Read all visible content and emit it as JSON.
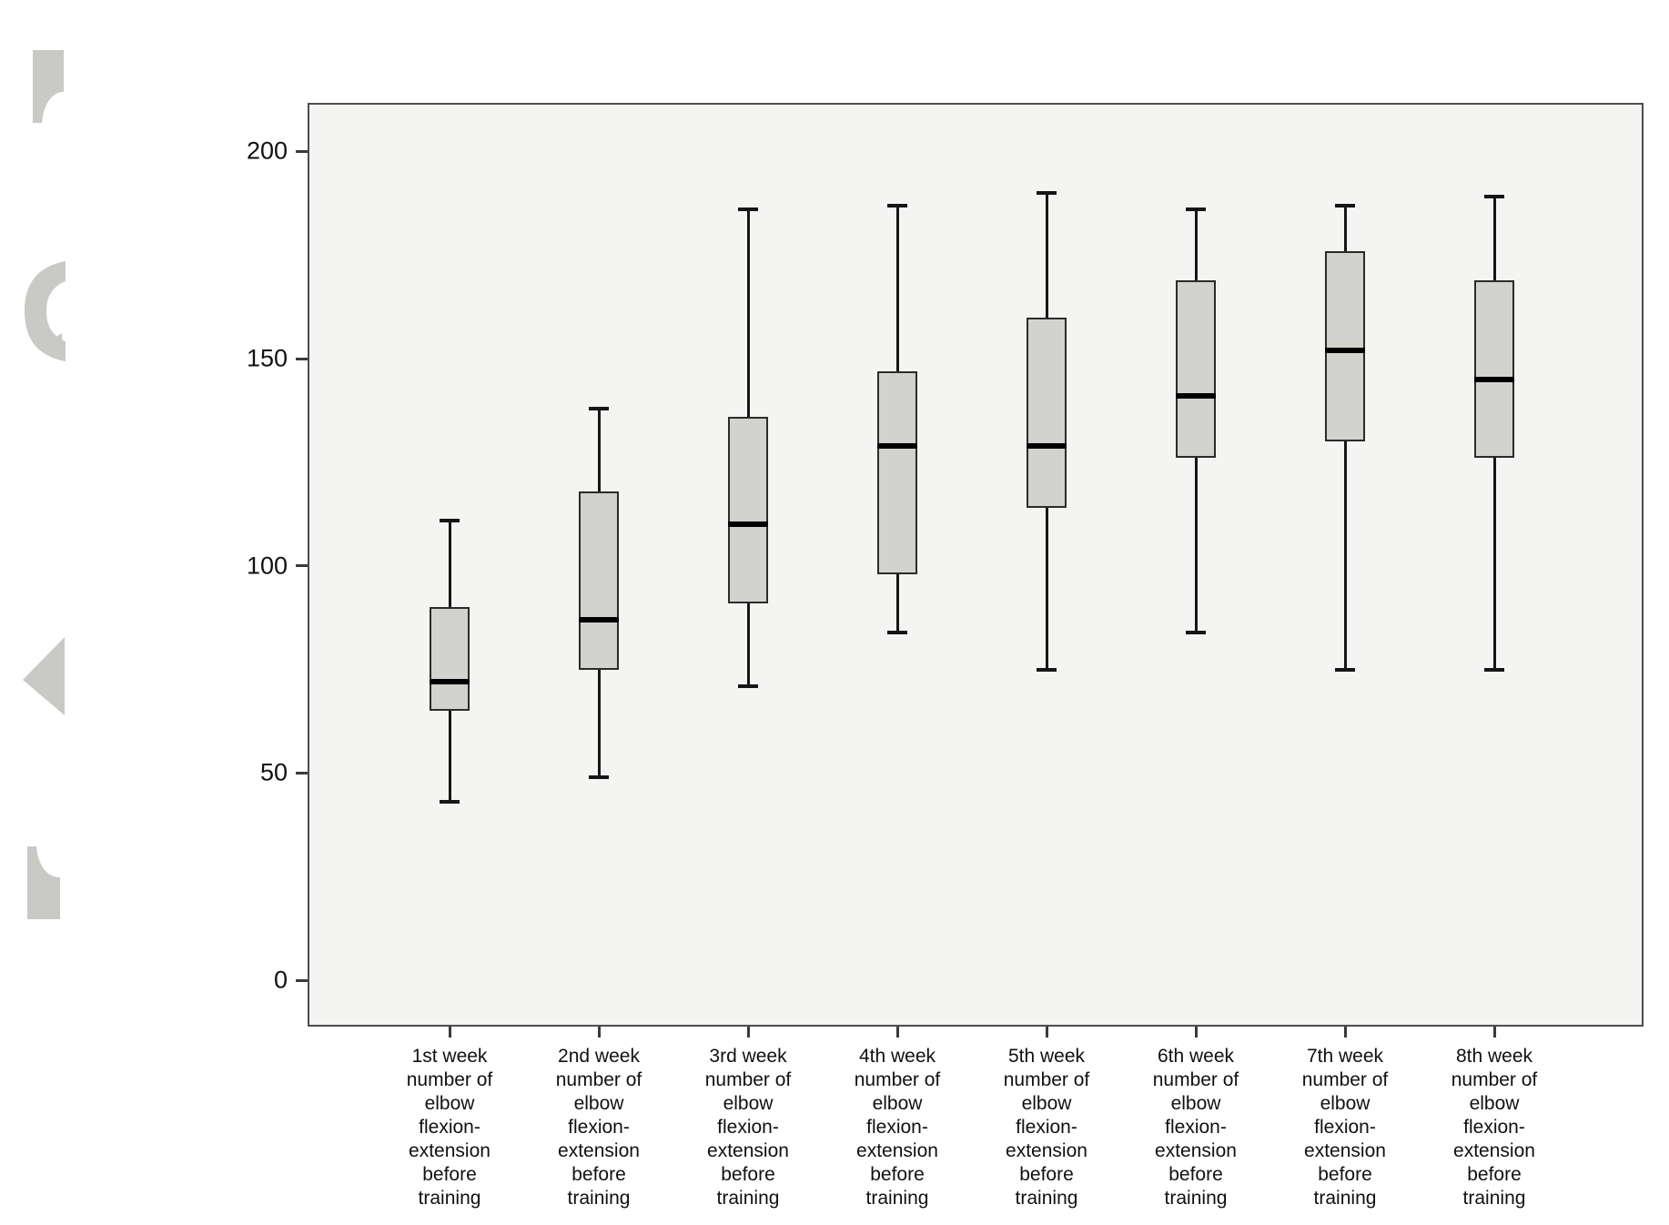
{
  "chart_data": {
    "type": "boxplot",
    "title": "",
    "xlabel": "",
    "ylabel": "",
    "grid": false,
    "legend": "none",
    "y_axis": {
      "tick_labels": [
        "0",
        "50",
        "100",
        "150",
        "200"
      ],
      "tick_values": [
        0,
        50,
        100,
        150,
        200
      ],
      "range": [
        -11,
        212
      ]
    },
    "categories": [
      "1st week\nnumber of\nelbow\nflexion-\nextension\nbefore\ntraining",
      "2nd week\nnumber of\nelbow\nflexion-\nextension\nbefore\ntraining",
      "3rd week\nnumber of\nelbow\nflexion-\nextension\nbefore\ntraining",
      "4th week\nnumber of\nelbow\nflexion-\nextension\nbefore\ntraining",
      "5th week\nnumber of\nelbow\nflexion-\nextension\nbefore\ntraining",
      "6th week\nnumber of\nelbow\nflexion-\nextension\nbefore\ntraining",
      "7th week\nnumber of\nelbow\nflexion-\nextension\nbefore\ntraining",
      "8th week\nnumber of\nelbow\nflexion-\nextension\nbefore\ntraining"
    ],
    "series": [
      {
        "name": "1st week",
        "min": 43,
        "q1": 65,
        "median": 72,
        "q3": 90,
        "max": 111
      },
      {
        "name": "2nd week",
        "min": 49,
        "q1": 75,
        "median": 87,
        "q3": 118,
        "max": 138
      },
      {
        "name": "3rd week",
        "min": 71,
        "q1": 91,
        "median": 110,
        "q3": 136,
        "max": 186
      },
      {
        "name": "4th week",
        "min": 84,
        "q1": 98,
        "median": 129,
        "q3": 147,
        "max": 187
      },
      {
        "name": "5th week",
        "min": 75,
        "q1": 114,
        "median": 129,
        "q3": 160,
        "max": 190
      },
      {
        "name": "6th week",
        "min": 84,
        "q1": 126,
        "median": 141,
        "q3": 169,
        "max": 186
      },
      {
        "name": "7th week",
        "min": 75,
        "q1": 130,
        "median": 152,
        "q3": 176,
        "max": 187
      },
      {
        "name": "8th week",
        "min": 75,
        "q1": 126,
        "median": 145,
        "q3": 169,
        "max": 189
      }
    ]
  },
  "colors": {
    "plot_background": "#f4f4f2",
    "plot_border": "#4d4d4f",
    "box_fill": "#d2d2cf",
    "box_border": "#2b2b2b",
    "median": "#000000",
    "whisker": "#161616",
    "tick_text": "#111111",
    "watermark": "#c9c9c5"
  }
}
